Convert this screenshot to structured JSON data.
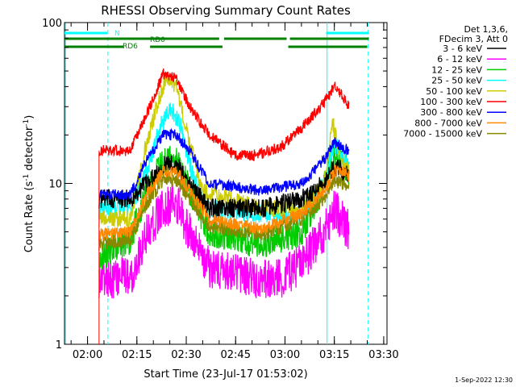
{
  "chart_data": {
    "type": "line",
    "title": "RHESSI Observing Summary Count Rates",
    "xlabel": "Start Time (23-Jul-17 01:53:02)",
    "ylabel_main": "Count Rate (s",
    "ylabel_sup1": "-1",
    "ylabel_mid": " detector",
    "ylabel_sup2": "-1",
    "ylabel_end": ")",
    "yscale": "log",
    "ylim": [
      1,
      100
    ],
    "xlim_minutes": [
      0,
      98
    ],
    "x_ticks": [
      {
        "label": "02:00",
        "m": 7
      },
      {
        "label": "02:15",
        "m": 22
      },
      {
        "label": "02:30",
        "m": 37
      },
      {
        "label": "02:45",
        "m": 52
      },
      {
        "label": "03:00",
        "m": 67
      },
      {
        "label": "03:15",
        "m": 82
      },
      {
        "label": "03:30",
        "m": 97
      }
    ],
    "y_ticks": [
      {
        "label": "1",
        "v": 1
      },
      {
        "label": "10",
        "v": 10
      },
      {
        "label": "100",
        "v": 100
      }
    ],
    "legend_header": [
      "Det 1,3,6,",
      "FDecim 3, Att 0"
    ],
    "series": [
      {
        "name": "3 - 6 keV",
        "color": "#000000",
        "noise": 0.14,
        "points": [
          [
            10.5,
            8
          ],
          [
            20,
            8
          ],
          [
            25,
            10
          ],
          [
            30,
            13
          ],
          [
            34,
            13
          ],
          [
            38,
            10
          ],
          [
            44,
            7
          ],
          [
            60,
            7
          ],
          [
            72,
            8
          ],
          [
            79,
            10
          ],
          [
            82,
            13
          ],
          [
            84,
            12
          ],
          [
            86.5,
            11
          ]
        ]
      },
      {
        "name": "6 - 12 keV",
        "color": "#ff00ff",
        "noise": 0.3,
        "points": [
          [
            10.5,
            2.6
          ],
          [
            20,
            2.6
          ],
          [
            25,
            5
          ],
          [
            30,
            7
          ],
          [
            34,
            7.5
          ],
          [
            38,
            5
          ],
          [
            44,
            3
          ],
          [
            55,
            2.6
          ],
          [
            66,
            2.6
          ],
          [
            72,
            3.2
          ],
          [
            79,
            5
          ],
          [
            82,
            7
          ],
          [
            84,
            6
          ],
          [
            86.5,
            5
          ]
        ]
      },
      {
        "name": "12 - 25 keV",
        "color": "#00cc00",
        "noise": 0.22,
        "points": [
          [
            10.5,
            3.5
          ],
          [
            20,
            4.5
          ],
          [
            25,
            9
          ],
          [
            30,
            14
          ],
          [
            34,
            14
          ],
          [
            38,
            9
          ],
          [
            44,
            5
          ],
          [
            60,
            4.2
          ],
          [
            72,
            5
          ],
          [
            79,
            10
          ],
          [
            82,
            16
          ],
          [
            84,
            14
          ],
          [
            86.5,
            12
          ]
        ]
      },
      {
        "name": "25 - 50 keV",
        "color": "#00ffff",
        "noise": 0.14,
        "points": [
          [
            10.5,
            7
          ],
          [
            20,
            7
          ],
          [
            25,
            12
          ],
          [
            29,
            22
          ],
          [
            32,
            29
          ],
          [
            35,
            24
          ],
          [
            39,
            11
          ],
          [
            44,
            7
          ],
          [
            60,
            6.5
          ],
          [
            72,
            6.5
          ],
          [
            79,
            10
          ],
          [
            82,
            18
          ],
          [
            84,
            15
          ],
          [
            86.5,
            13
          ]
        ]
      },
      {
        "name": "50 - 100 keV",
        "color": "#cccc00",
        "noise": 0.12,
        "points": [
          [
            10.5,
            6
          ],
          [
            20,
            6
          ],
          [
            24,
            15
          ],
          [
            28,
            30
          ],
          [
            31,
            46
          ],
          [
            34,
            40
          ],
          [
            38,
            18
          ],
          [
            42,
            9
          ],
          [
            60,
            7
          ],
          [
            72,
            7
          ],
          [
            79,
            10
          ],
          [
            81.5,
            24
          ],
          [
            84,
            14
          ],
          [
            86.5,
            12
          ]
        ]
      },
      {
        "name": "100 - 300 keV",
        "color": "#ff0000",
        "noise": 0.08,
        "points": [
          [
            10.5,
            16
          ],
          [
            20,
            16
          ],
          [
            25,
            27
          ],
          [
            30,
            48
          ],
          [
            34,
            45
          ],
          [
            38,
            30
          ],
          [
            44,
            20
          ],
          [
            52,
            15
          ],
          [
            58,
            15
          ],
          [
            66,
            17
          ],
          [
            72,
            22
          ],
          [
            79,
            32
          ],
          [
            82,
            40
          ],
          [
            84,
            36
          ],
          [
            86.5,
            30
          ]
        ]
      },
      {
        "name": "300 - 800 keV",
        "color": "#0000ff",
        "noise": 0.08,
        "points": [
          [
            10.5,
            8.5
          ],
          [
            20,
            8.5
          ],
          [
            25,
            14
          ],
          [
            30,
            20
          ],
          [
            34,
            20
          ],
          [
            38,
            16
          ],
          [
            44,
            10
          ],
          [
            60,
            9
          ],
          [
            72,
            10
          ],
          [
            79,
            14
          ],
          [
            82,
            18
          ],
          [
            84,
            17
          ],
          [
            86.5,
            16
          ]
        ]
      },
      {
        "name": "800 - 7000 keV",
        "color": "#ff8800",
        "noise": 0.09,
        "points": [
          [
            10.5,
            4.8
          ],
          [
            20,
            5
          ],
          [
            25,
            8.5
          ],
          [
            30,
            12
          ],
          [
            34,
            12
          ],
          [
            38,
            9
          ],
          [
            44,
            6
          ],
          [
            60,
            5.2
          ],
          [
            72,
            6.5
          ],
          [
            79,
            9
          ],
          [
            82,
            12
          ],
          [
            84,
            12
          ],
          [
            86.5,
            11
          ]
        ]
      },
      {
        "name": "7000 - 15000 keV",
        "color": "#888800",
        "noise": 0.1,
        "points": [
          [
            10.5,
            4.2
          ],
          [
            20,
            4.5
          ],
          [
            25,
            7.5
          ],
          [
            30,
            10.5
          ],
          [
            34,
            10.5
          ],
          [
            38,
            8
          ],
          [
            44,
            5.4
          ],
          [
            60,
            4.8
          ],
          [
            72,
            6
          ],
          [
            79,
            8
          ],
          [
            82,
            10.5
          ],
          [
            84,
            10
          ],
          [
            86.5,
            9.5
          ]
        ]
      }
    ],
    "flag_bars": [
      {
        "label": "N",
        "color": "#00ffff",
        "segments": [
          [
            0,
            13
          ],
          [
            79.5,
            92.5
          ]
        ],
        "level": 0
      },
      {
        "label": "RD0",
        "color": "#008000",
        "segments": [
          [
            0,
            47
          ],
          [
            48.5,
            67.5
          ],
          [
            68.5,
            92.5
          ]
        ],
        "level": 1
      },
      {
        "label": "RD6",
        "color": "#008000",
        "segments": [
          [
            0,
            18
          ],
          [
            26,
            48
          ],
          [
            68,
            92
          ]
        ],
        "level": 2
      }
    ],
    "vlines": [
      {
        "m": 0.3,
        "style": "solid",
        "color": "#00ffff"
      },
      {
        "m": 13.2,
        "style": "dashed",
        "color": "#00ffff"
      },
      {
        "m": 79.8,
        "style": "solid",
        "color": "#00ffff"
      },
      {
        "m": 92.3,
        "style": "dashed",
        "color": "#00ffff"
      }
    ],
    "footer": "1-Sep-2022 12:30"
  }
}
